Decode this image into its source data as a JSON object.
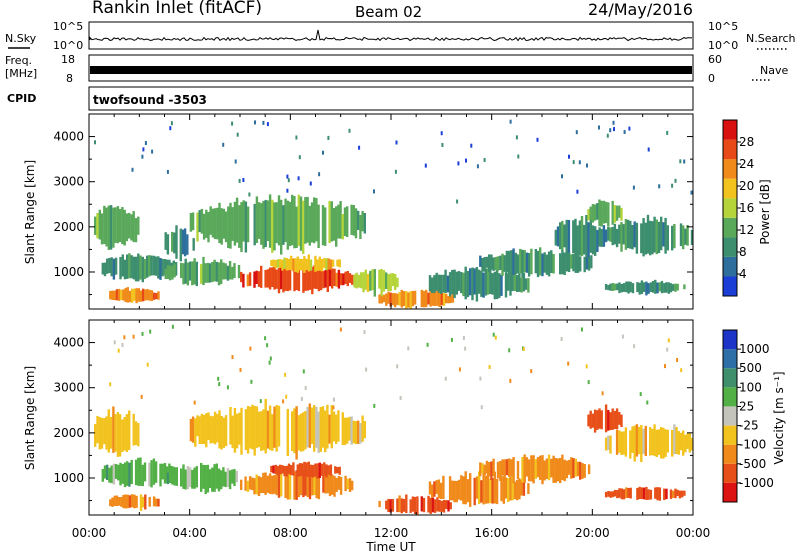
{
  "header": {
    "station": "Rankin Inlet (fitACF)",
    "beam": "Beam 02",
    "date": "24/May/2016"
  },
  "summary_panels": {
    "nsky_label": "N.Sky",
    "nsearch_label": "N.Search",
    "freq_label_1": "Freq.",
    "freq_label_2": "[MHz]",
    "nave_label": "Nave",
    "cpid_label": "CPID",
    "cpid_value": "twofsound -3503",
    "noise_ticks_left": [
      "10^5",
      "10^0"
    ],
    "noise_ticks_right": [
      "10^5",
      "10^0"
    ],
    "freq_ticks_left": [
      "18",
      "8"
    ],
    "freq_ticks_right": [
      "60",
      "0"
    ]
  },
  "chart_data": [
    {
      "type": "heatmap",
      "title": "",
      "xlabel": "Time UT",
      "ylabel": "Slant Range [km]",
      "x_ticks": [
        "00:00",
        "04:00",
        "08:00",
        "12:00",
        "16:00",
        "20:00",
        "00:00"
      ],
      "xlim": [
        0,
        24
      ],
      "ylim": [
        180,
        4500
      ],
      "y_ticks": [
        1000,
        2000,
        3000,
        4000
      ],
      "colorbar": {
        "label": "Power [dB]",
        "range": [
          0,
          32
        ],
        "ticks": [
          4,
          8,
          12,
          16,
          20,
          24,
          28
        ],
        "colors": [
          "#1b3fd6",
          "#2d6e9c",
          "#3d8e6f",
          "#5aa85a",
          "#b5d43a",
          "#f2c21f",
          "#f08a1b",
          "#e84a17",
          "#d81010"
        ]
      },
      "regions": [
        {
          "t": [
            0.2,
            2.0
          ],
          "r": [
            1500,
            2500
          ],
          "v": 11
        },
        {
          "t": [
            0.5,
            3.5
          ],
          "r": [
            800,
            1400
          ],
          "v": 10
        },
        {
          "t": [
            0.8,
            2.8
          ],
          "r": [
            300,
            650
          ],
          "v": 24
        },
        {
          "t": [
            3.0,
            4.2
          ],
          "r": [
            1300,
            2000
          ],
          "v": 9
        },
        {
          "t": [
            4.0,
            11.0
          ],
          "r": [
            1500,
            2650
          ],
          "v": 11
        },
        {
          "t": [
            3.0,
            6.0
          ],
          "r": [
            700,
            1300
          ],
          "v": 12
        },
        {
          "t": [
            6.0,
            10.5
          ],
          "r": [
            550,
            1150
          ],
          "v": 26
        },
        {
          "t": [
            7.2,
            10.0
          ],
          "r": [
            1000,
            1350
          ],
          "v": 19
        },
        {
          "t": [
            10.5,
            12.3
          ],
          "r": [
            500,
            1100
          ],
          "v": 15
        },
        {
          "t": [
            11.5,
            14.5
          ],
          "r": [
            200,
            600
          ],
          "v": 24
        },
        {
          "t": [
            13.5,
            17.5
          ],
          "r": [
            400,
            1100
          ],
          "v": 9
        },
        {
          "t": [
            15.5,
            20.0
          ],
          "r": [
            900,
            1500
          ],
          "v": 10
        },
        {
          "t": [
            18.5,
            20.5
          ],
          "r": [
            1300,
            2200
          ],
          "v": 9
        },
        {
          "t": [
            19.8,
            21.2
          ],
          "r": [
            2000,
            2600
          ],
          "v": 13
        },
        {
          "t": [
            20.5,
            24.0
          ],
          "r": [
            1400,
            2200
          ],
          "v": 8
        },
        {
          "t": [
            20.5,
            23.7
          ],
          "r": [
            500,
            800
          ],
          "v": 9
        }
      ]
    },
    {
      "type": "heatmap",
      "title": "",
      "xlabel": "Time UT",
      "ylabel": "Slant Range [km]",
      "x_ticks": [
        "00:00",
        "04:00",
        "08:00",
        "12:00",
        "16:00",
        "20:00",
        "00:00"
      ],
      "xlim": [
        0,
        24
      ],
      "ylim": [
        180,
        4500
      ],
      "y_ticks": [
        1000,
        2000,
        3000,
        4000
      ],
      "colorbar": {
        "label": "Velocity [m s⁻¹]",
        "ticks": [
          "1000",
          "500",
          "100",
          "25",
          "-25",
          "-100",
          "-500",
          "-1000"
        ],
        "colors": [
          "#1c34c8",
          "#2f6fa8",
          "#3f8f6c",
          "#52b046",
          "#c4c4bc",
          "#f2c31f",
          "#f08a1b",
          "#e8501a",
          "#dd1212"
        ]
      },
      "regions": [
        {
          "t": [
            0.2,
            2.0
          ],
          "r": [
            1500,
            2500
          ],
          "v": "-25"
        },
        {
          "t": [
            0.5,
            3.5
          ],
          "r": [
            800,
            1400
          ],
          "v": "100"
        },
        {
          "t": [
            0.8,
            2.8
          ],
          "r": [
            300,
            650
          ],
          "v": "-100"
        },
        {
          "t": [
            4.0,
            11.0
          ],
          "r": [
            1500,
            2650
          ],
          "v": "-25"
        },
        {
          "t": [
            3.0,
            6.0
          ],
          "r": [
            700,
            1300
          ],
          "v": "100"
        },
        {
          "t": [
            6.0,
            10.5
          ],
          "r": [
            550,
            1150
          ],
          "v": "-100"
        },
        {
          "t": [
            7.2,
            10.0
          ],
          "r": [
            1000,
            1350
          ],
          "v": "-500"
        },
        {
          "t": [
            11.5,
            14.5
          ],
          "r": [
            200,
            600
          ],
          "v": "-500"
        },
        {
          "t": [
            13.5,
            17.5
          ],
          "r": [
            400,
            1100
          ],
          "v": "-100"
        },
        {
          "t": [
            15.5,
            20.0
          ],
          "r": [
            900,
            1500
          ],
          "v": "-100"
        },
        {
          "t": [
            19.8,
            21.2
          ],
          "r": [
            2000,
            2600
          ],
          "v": "-500"
        },
        {
          "t": [
            20.5,
            24.0
          ],
          "r": [
            1400,
            2200
          ],
          "v": "-25"
        },
        {
          "t": [
            20.5,
            23.7
          ],
          "r": [
            500,
            800
          ],
          "v": "-500"
        }
      ]
    }
  ]
}
